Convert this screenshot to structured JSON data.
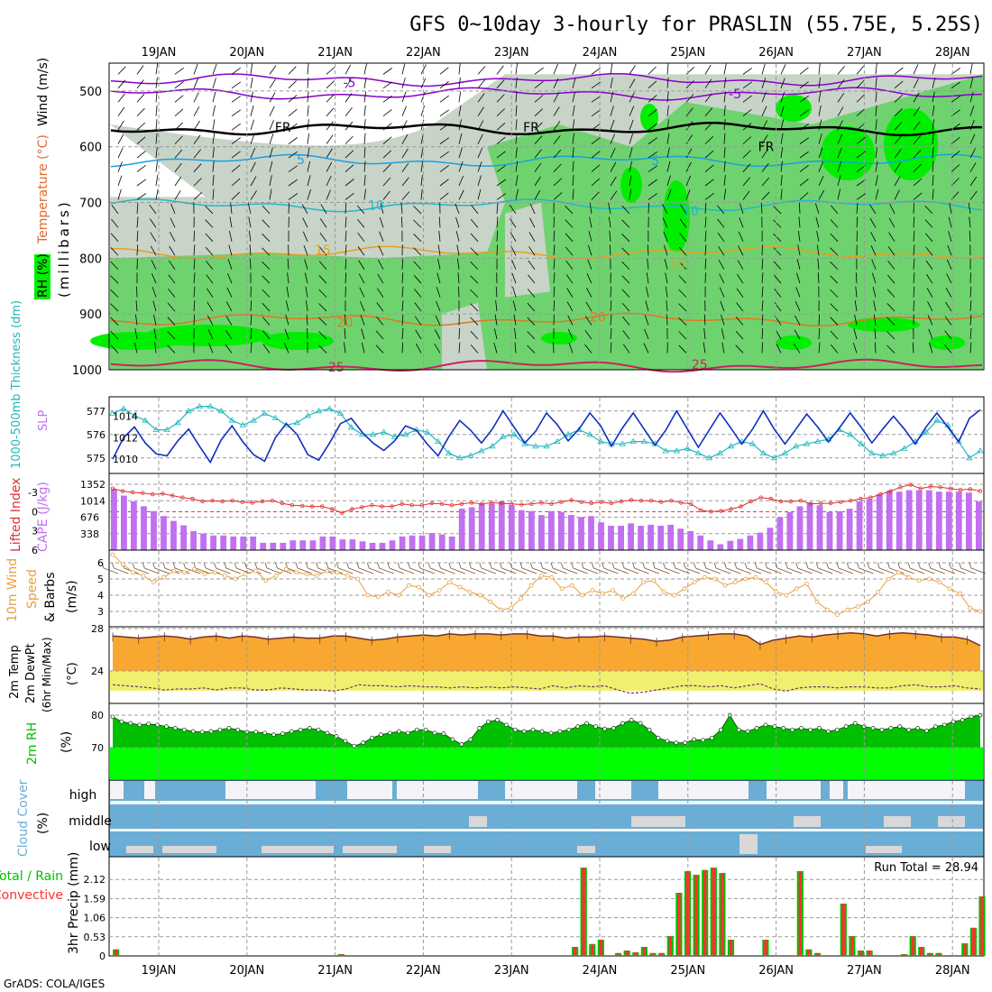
{
  "header": {
    "title": "GFS 0~10day 3-hourly for PRASLIN (55.75E, 5.25S)",
    "credit": "GrADS: COLA/IGES"
  },
  "x_axis": {
    "dates": [
      "19JAN",
      "20JAN",
      "21JAN",
      "22JAN",
      "23JAN",
      "24JAN",
      "25JAN",
      "26JAN",
      "27JAN",
      "28JAN"
    ]
  },
  "colors": {
    "rh_dark": "#00ee00",
    "rh_mid": "#6ed36e",
    "rh_light": "#c8d4c8",
    "temp_purple": "#8800cc",
    "temp_cyan": "#1aa0e0",
    "temp_orange": "#e6a020",
    "temp_red": "#cc2060",
    "thickness": "#20b8c0",
    "slp": "#1030c0",
    "cape": "#c070f0",
    "li": "#e03030",
    "wind": "#e8a040",
    "temp_fill": "#f8a830",
    "dew_fill": "#f0f070",
    "rh2m_dark": "#00c000",
    "rh2m_light": "#00ff00",
    "cloud": "#6aaed6",
    "rain_total": "#00c000",
    "rain_conv": "#ff3030"
  },
  "chart_data": [
    {
      "type": "area",
      "panel": "upper-air",
      "ylabel_parts": [
        "Wind (m/s)",
        "Temperature (°C)",
        "RH (%)"
      ],
      "yunit": "(millibars)",
      "yticks": [
        500,
        600,
        700,
        800,
        900,
        1000
      ],
      "ylim": [
        450,
        1000
      ],
      "contour_labels": [
        {
          "value": "-5",
          "level": 485,
          "time": 2.65
        },
        {
          "value": "-5",
          "level": 505,
          "time": 7.0
        },
        {
          "value": "FR",
          "level": 565,
          "time": 1.9
        },
        {
          "value": "FR",
          "level": 565,
          "time": 4.7
        },
        {
          "value": "FR",
          "level": 600,
          "time": 7.35
        },
        {
          "value": "5",
          "level": 623,
          "time": 2.1
        },
        {
          "value": "5",
          "level": 625,
          "time": 6.1
        },
        {
          "value": "10",
          "level": 705,
          "time": 2.95
        },
        {
          "value": "10",
          "level": 715,
          "time": 6.5
        },
        {
          "value": "15",
          "level": 785,
          "time": 2.35
        },
        {
          "value": "15",
          "level": 810,
          "time": 6.35
        },
        {
          "value": "20",
          "level": 915,
          "time": 2.6
        },
        {
          "value": "20",
          "level": 905,
          "time": 5.45
        },
        {
          "value": "25",
          "level": 995,
          "time": 2.5
        },
        {
          "value": "25",
          "level": 990,
          "time": 6.6
        }
      ]
    },
    {
      "type": "line",
      "panel": "thickness-slp",
      "ylabel_left": "1000-500mb Thickness (dm)",
      "ylabel_right": "SLP",
      "left_ticks": [
        575,
        576,
        577
      ],
      "right_ticks": [
        1010,
        1012,
        1014
      ],
      "series": [
        {
          "name": "1000-500mb Thickness (dm)",
          "values": [
            576.9,
            577.1,
            576.8,
            576.6,
            576.2,
            576.2,
            576.5,
            577.0,
            577.2,
            577.2,
            577.0,
            576.6,
            576.4,
            576.6,
            576.9,
            576.7,
            576.4,
            576.5,
            576.8,
            577.0,
            577.1,
            576.9,
            576.3,
            576.0,
            576.0,
            576.1,
            575.9,
            576.0,
            576.2,
            576.1,
            575.7,
            575.2,
            575.0,
            575.1,
            575.3,
            575.5,
            575.9,
            576.0,
            575.6,
            575.5,
            575.5,
            575.7,
            576.0,
            576.2,
            576.0,
            575.7,
            575.6,
            575.6,
            575.7,
            575.7,
            575.6,
            575.3,
            575.3,
            575.4,
            575.2,
            575.0,
            575.2,
            575.5,
            575.7,
            575.6,
            575.2,
            575.0,
            575.2,
            575.5,
            575.6,
            575.7,
            575.8,
            576.2,
            576.0,
            575.6,
            575.2,
            575.1,
            575.2,
            575.4,
            575.7,
            576.1,
            576.6,
            576.4,
            575.7,
            575.0,
            575.3
          ]
        },
        {
          "name": "SLP",
          "values": [
            1010.0,
            1012.0,
            1013.0,
            1011.5,
            1010.5,
            1010.3,
            1011.7,
            1012.8,
            1011.2,
            1009.7,
            1011.8,
            1013.1,
            1011.6,
            1010.4,
            1009.8,
            1012.0,
            1013.3,
            1012.3,
            1010.4,
            1009.9,
            1011.5,
            1013.3,
            1013.8,
            1012.5,
            1011.5,
            1010.8,
            1011.7,
            1013.1,
            1012.7,
            1011.4,
            1010.3,
            1012.1,
            1013.6,
            1012.7,
            1011.5,
            1012.8,
            1014.5,
            1013.0,
            1011.5,
            1012.6,
            1014.3,
            1013.2,
            1011.7,
            1012.8,
            1014.3,
            1013.1,
            1011.2,
            1012.9,
            1014.3,
            1012.8,
            1011.3,
            1012.7,
            1014.5,
            1012.8,
            1011.1,
            1012.7,
            1014.3,
            1012.9,
            1011.4,
            1012.8,
            1014.5,
            1012.8,
            1011.4,
            1012.8,
            1014.2,
            1013.0,
            1011.6,
            1012.9,
            1014.3,
            1013.0,
            1011.5,
            1012.8,
            1014.0,
            1012.8,
            1011.4,
            1013.0,
            1014.3,
            1013.0,
            1011.6,
            1013.8,
            1014.6
          ]
        }
      ]
    },
    {
      "type": "bar",
      "panel": "cape-li",
      "ylabel_left": "Lifted Index",
      "ylabel_right": "CAPE (J/kg)",
      "li_ticks": [
        "-3",
        "0",
        "3",
        "6"
      ],
      "cape_ticks": [
        "338",
        "676",
        "1014",
        "1352"
      ],
      "series": [
        {
          "name": "CAPE (J/kg)",
          "values": [
            1260,
            1120,
            1000,
            900,
            800,
            700,
            600,
            510,
            390,
            340,
            300,
            300,
            280,
            280,
            280,
            150,
            150,
            150,
            200,
            200,
            200,
            280,
            280,
            220,
            220,
            180,
            150,
            150,
            200,
            280,
            300,
            300,
            350,
            320,
            280,
            850,
            880,
            950,
            950,
            1000,
            920,
            820,
            800,
            720,
            800,
            780,
            720,
            680,
            700,
            570,
            500,
            500,
            550,
            500,
            520,
            500,
            520,
            440,
            390,
            300,
            200,
            120,
            190,
            230,
            300,
            360,
            460,
            680,
            780,
            900,
            980,
            920,
            780,
            800,
            850,
            1000,
            1050,
            1150,
            1220,
            1200,
            1230,
            1230,
            1230,
            1200,
            1200,
            1200,
            1180,
            1000
          ]
        },
        {
          "name": "Lifted Index",
          "values": [
            -3.6,
            -3.2,
            -3.0,
            -2.9,
            -2.7,
            -2.8,
            -2.5,
            -2.2,
            -2.0,
            -1.6,
            -1.7,
            -1.6,
            -1.7,
            -1.5,
            -1.4,
            -1.6,
            -1.7,
            -1.3,
            -1.0,
            -0.9,
            -0.8,
            -0.8,
            -0.4,
            0.2,
            -0.4,
            -0.7,
            -1.0,
            -0.8,
            -0.8,
            -1.2,
            -1.0,
            -1.0,
            -1.3,
            -1.2,
            -1.0,
            -1.2,
            -1.4,
            -1.2,
            -1.4,
            -1.3,
            -1.2,
            -1.1,
            -1.2,
            -1.4,
            -1.2,
            -1.5,
            -1.8,
            -1.5,
            -1.3,
            -1.5,
            -1.3,
            -1.6,
            -1.8,
            -1.7,
            -1.7,
            -1.5,
            -1.7,
            -1.4,
            -1.2,
            -0.2,
            0.0,
            -0.1,
            -0.4,
            -0.8,
            -1.6,
            -2.2,
            -2.0,
            -1.6,
            -1.6,
            -1.7,
            -1.2,
            -1.3,
            -1.3,
            -1.5,
            -1.7,
            -2.0,
            -2.2,
            -2.7,
            -3.2,
            -3.8,
            -4.2,
            -3.6,
            -3.9,
            -3.8,
            -3.6,
            -3.4,
            -3.5,
            -3.2
          ]
        }
      ]
    },
    {
      "type": "line",
      "panel": "wind10m",
      "ylabel_parts": [
        "10m Wind",
        "Speed",
        "& Barbs"
      ],
      "yunit": "(m/s)",
      "yticks": [
        3,
        4,
        5,
        6
      ],
      "series": [
        {
          "name": "10m Wind Speed",
          "values": [
            6.5,
            5.9,
            5.4,
            5.2,
            4.8,
            5.1,
            5.5,
            5.4,
            5.6,
            5.3,
            5.4,
            5.2,
            5.0,
            5.3,
            5.5,
            4.9,
            5.2,
            5.6,
            5.4,
            5.3,
            5.2,
            5.5,
            5.4,
            5.2,
            5.0,
            4.0,
            3.9,
            4.2,
            4.0,
            4.6,
            4.5,
            4.0,
            4.3,
            4.8,
            4.5,
            4.2,
            4.0,
            3.6,
            3.1,
            3.2,
            3.8,
            4.6,
            5.2,
            5.1,
            4.4,
            4.6,
            4.0,
            4.3,
            4.1,
            4.3,
            3.8,
            4.1,
            4.8,
            4.9,
            4.2,
            4.0,
            4.4,
            4.8,
            5.1,
            5.0,
            4.6,
            4.8,
            5.0,
            5.1,
            4.8,
            4.2,
            4.0,
            4.4,
            4.7,
            3.6,
            3.1,
            2.8,
            3.1,
            3.3,
            3.6,
            4.2,
            5.0,
            5.4,
            5.1,
            4.9,
            5.0,
            4.8,
            4.4,
            4.1,
            3.2,
            3.0
          ]
        }
      ]
    },
    {
      "type": "area",
      "panel": "temp2m",
      "ylabel_parts": [
        "2m Temp",
        "2m DewPt",
        "(6hr Min/Max)"
      ],
      "yunit": "(°C)",
      "yticks": [
        24,
        28
      ],
      "series": [
        {
          "name": "2m Temp",
          "values": [
            27.3,
            27.2,
            27.1,
            27.2,
            27.3,
            27.2,
            27.0,
            27.2,
            27.3,
            27.1,
            27.3,
            27.2,
            27.0,
            27.1,
            27.2,
            27.1,
            27.1,
            27.3,
            27.3,
            27.1,
            26.9,
            27.0,
            27.2,
            27.3,
            27.4,
            27.3,
            27.5,
            27.4,
            27.5,
            27.5,
            27.4,
            27.5,
            27.5,
            27.3,
            27.3,
            27.1,
            27.2,
            27.2,
            27.3,
            27.2,
            27.1,
            27.0,
            26.8,
            26.9,
            27.2,
            27.3,
            27.4,
            27.5,
            27.5,
            27.3,
            26.5,
            26.9,
            27.1,
            27.3,
            27.2,
            27.4,
            27.5,
            27.6,
            27.5,
            27.3,
            27.5,
            27.6,
            27.5,
            27.4,
            27.2,
            27.2,
            27.0,
            26.4
          ]
        },
        {
          "name": "2m DewPt",
          "values": [
            22.7,
            22.6,
            22.5,
            22.4,
            22.2,
            22.3,
            22.3,
            22.4,
            22.2,
            22.4,
            22.4,
            22.2,
            22.2,
            22.4,
            22.3,
            22.2,
            22.2,
            22.1,
            22.3,
            22.7,
            22.6,
            22.6,
            22.5,
            22.6,
            22.5,
            22.5,
            22.4,
            22.5,
            22.4,
            22.5,
            22.4,
            22.5,
            22.4,
            22.3,
            22.6,
            22.4,
            22.6,
            22.5,
            22.6,
            22.2,
            21.9,
            22.0,
            22.2,
            22.4,
            22.6,
            22.6,
            22.5,
            22.6,
            22.4,
            22.6,
            22.8,
            22.3,
            22.1,
            22.4,
            22.5,
            22.5,
            22.4,
            22.5,
            22.5,
            22.4,
            22.4,
            22.6,
            22.7,
            22.5,
            22.5,
            22.6,
            22.4,
            22.3
          ]
        }
      ]
    },
    {
      "type": "area",
      "panel": "rh2m",
      "ylabel": "2m RH",
      "yunit": "(%)",
      "yticks": [
        70,
        80
      ],
      "series": [
        {
          "name": "2m RH",
          "values": [
            79.5,
            78,
            77.5,
            77,
            77.3,
            77,
            76.5,
            76,
            75.5,
            75,
            74.8,
            75,
            75.5,
            76,
            75.5,
            74.8,
            74.8,
            74.5,
            74,
            74.3,
            75,
            75.5,
            76,
            75.5,
            74.5,
            73.5,
            72,
            70.5,
            71.5,
            73,
            74,
            74.5,
            75,
            74.5,
            75.5,
            75.5,
            74.5,
            74.3,
            72.5,
            71,
            72.5,
            76,
            78,
            78.5,
            77,
            75.5,
            75,
            75.5,
            75,
            74.5,
            75,
            75.5,
            76.5,
            77.5,
            76.5,
            75.8,
            76,
            77.5,
            78.5,
            77.5,
            75.5,
            73,
            72,
            71.5,
            71.5,
            72.5,
            72.3,
            73,
            75.5,
            80,
            75.5,
            75,
            76,
            77,
            76.5,
            76,
            75.5,
            76,
            75.5,
            76,
            75,
            75.5,
            76.5,
            77.5,
            76.5,
            76,
            75.5,
            76,
            76.5,
            75.5,
            76,
            75.2,
            76.5,
            77,
            78,
            78.5,
            79.5,
            80
          ]
        }
      ]
    },
    {
      "type": "bar",
      "panel": "cloud-cover",
      "ylabel": "Cloud Cover",
      "yunit": "(%)",
      "levels": [
        "high",
        "middle",
        "low"
      ]
    },
    {
      "type": "bar",
      "panel": "precip",
      "ylabel_left": [
        "Total / Rain",
        "Convective"
      ],
      "ylabel": "3hr Precip (mm)",
      "yticks": [
        "0",
        "0.53",
        "1.06",
        "1.59",
        "2.12"
      ],
      "ylim": [
        0,
        2.65
      ],
      "run_total_label": "Run Total = 28.94",
      "series": [
        {
          "name": "3hr Precip",
          "values": [
            0.18,
            0,
            0,
            0,
            0,
            0,
            0,
            0,
            0,
            0,
            0,
            0,
            0,
            0,
            0,
            0,
            0,
            0,
            0,
            0,
            0,
            0,
            0,
            0,
            0,
            0,
            0.05,
            0,
            0,
            0,
            0,
            0,
            0,
            0,
            0,
            0,
            0,
            0,
            0,
            0,
            0,
            0,
            0,
            0,
            0,
            0,
            0,
            0,
            0,
            0,
            0,
            0,
            0,
            0.25,
            2.45,
            0.33,
            0.45,
            0,
            0.08,
            0.15,
            0.1,
            0.25,
            0.08,
            0.08,
            0.55,
            1.75,
            2.35,
            2.25,
            2.38,
            2.45,
            2.3,
            0.45,
            0,
            0,
            0,
            0.45,
            0,
            0,
            0,
            2.35,
            0.18,
            0.08,
            0,
            0,
            1.45,
            0.55,
            0.15,
            0.15,
            0,
            0,
            0,
            0.05,
            0.55,
            0.25,
            0.08,
            0.08,
            0,
            0,
            0.35,
            0.78,
            1.65
          ]
        }
      ]
    }
  ]
}
